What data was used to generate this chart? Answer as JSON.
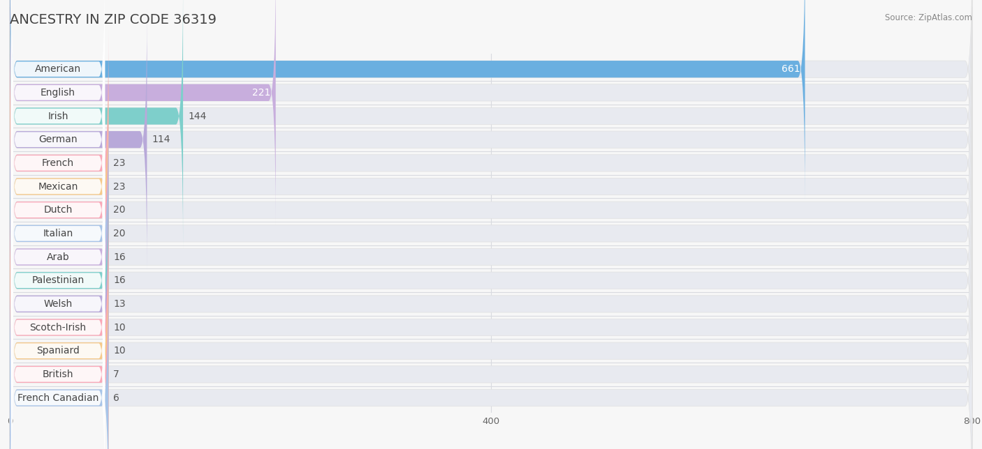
{
  "title": "ANCESTRY IN ZIP CODE 36319",
  "source": "Source: ZipAtlas.com",
  "categories": [
    "American",
    "English",
    "Irish",
    "German",
    "French",
    "Mexican",
    "Dutch",
    "Italian",
    "Arab",
    "Palestinian",
    "Welsh",
    "Scotch-Irish",
    "Spaniard",
    "British",
    "French Canadian"
  ],
  "values": [
    661,
    221,
    144,
    114,
    23,
    23,
    20,
    20,
    16,
    16,
    13,
    10,
    10,
    7,
    6
  ],
  "bar_colors": [
    "#6aafe0",
    "#c8aedd",
    "#7ecfcb",
    "#b8a9d9",
    "#f9a8b8",
    "#f5c98a",
    "#f9a8b8",
    "#a8c4e8",
    "#c8aedd",
    "#7ecfcb",
    "#b8a9d9",
    "#f9a8b8",
    "#f5c98a",
    "#f9a8b8",
    "#a8c4e8"
  ],
  "bg_bar_color": "#e8eaf0",
  "xlim": [
    0,
    800
  ],
  "xticks": [
    0,
    400,
    800
  ],
  "title_fontsize": 14,
  "label_fontsize": 10,
  "value_fontsize": 10,
  "bar_height": 0.72,
  "background_color": "#f7f7f7",
  "grid_color": "#ffffff",
  "label_color": "#444444",
  "value_color_outside": "#555555",
  "value_color_inside": "#ffffff"
}
